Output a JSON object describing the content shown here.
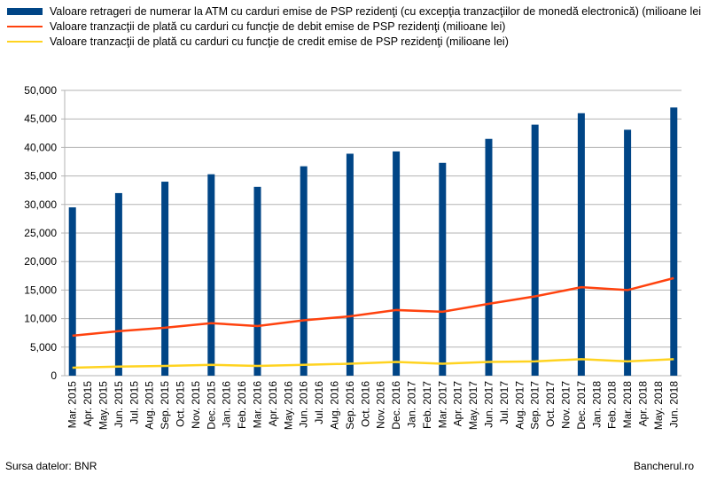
{
  "chart_data": {
    "type": "bar-line",
    "categories": [
      "Mar. 2015",
      "Apr. 2015",
      "May. 2015",
      "Jun. 2015",
      "Jul. 2015",
      "Aug. 2015",
      "Sep. 2015",
      "Oct. 2015",
      "Nov. 2015",
      "Dec. 2015",
      "Jan. 2016",
      "Feb. 2016",
      "Mar. 2016",
      "Apr. 2016",
      "May. 2016",
      "Jun. 2016",
      "Jul. 2016",
      "Aug. 2016",
      "Sep. 2016",
      "Oct. 2016",
      "Nov. 2016",
      "Dec. 2016",
      "Jan. 2017",
      "Feb. 2017",
      "Mar. 2017",
      "Apr. 2017",
      "May. 2017",
      "Jun. 2017",
      "Jul. 2017",
      "Aug. 2017",
      "Sep. 2017",
      "Oct. 2017",
      "Nov. 2017",
      "Dec. 2017",
      "Jan. 2018",
      "Feb. 2018",
      "Mar. 2018",
      "Apr. 2018",
      "May. 2018",
      "Jun. 2018"
    ],
    "x": [
      "Mar. 2015",
      "Jun. 2015",
      "Sep. 2015",
      "Dec. 2015",
      "Mar. 2016",
      "Jun. 2016",
      "Sep. 2016",
      "Dec. 2016",
      "Mar. 2017",
      "Jun. 2017",
      "Sep. 2017",
      "Dec. 2017",
      "Mar. 2018",
      "Jun. 2018"
    ],
    "series": [
      {
        "name": "Valoare  retrageri de numerar la ATM  cu carduri emise de PSP rezidenţi (cu excepţia tranzacţiilor de monedă electronică) (milioane lei)",
        "type": "bar",
        "color": "#004586",
        "values": [
          29500,
          32000,
          34000,
          35300,
          33100,
          36700,
          38900,
          39300,
          37300,
          41500,
          44000,
          46000,
          43100,
          47000
        ]
      },
      {
        "name": "Valoare tranzacţii de plată cu carduri cu funcţie de debit emise de PSP rezidenţi (milioane lei)",
        "type": "line",
        "color": "#ff420e",
        "values": [
          7000,
          7800,
          8400,
          9200,
          8700,
          9700,
          10400,
          11500,
          11200,
          12600,
          13900,
          15500,
          15000,
          17100
        ]
      },
      {
        "name": "Valoare tranzacţii de plată cu carduri cu funcţie de credit emise de PSP rezidenţi (milioane lei)",
        "type": "line",
        "color": "#ffd320",
        "values": [
          1400,
          1600,
          1700,
          1900,
          1700,
          1900,
          2100,
          2400,
          2100,
          2400,
          2500,
          2900,
          2500,
          2900
        ]
      }
    ],
    "ylim": [
      0,
      50000
    ],
    "yticks": [
      0,
      {
        "value": 5000,
        "label": "5,000"
      },
      {
        "value": 10000,
        "label": "10,000"
      },
      {
        "value": 15000,
        "label": "15,000"
      },
      {
        "value": 20000,
        "label": "20,000"
      },
      {
        "value": 25000,
        "label": "25,000"
      },
      {
        "value": 30000,
        "label": "30,000"
      },
      {
        "value": 35000,
        "label": "35,000"
      },
      {
        "value": 40000,
        "label": "40,000"
      },
      {
        "value": 45000,
        "label": "45,000"
      },
      {
        "value": 50000,
        "label": "50,000"
      }
    ],
    "grid": true,
    "legend": "top",
    "source": "Sursa datelor: BNR",
    "credit": "Bancherul.ro"
  }
}
